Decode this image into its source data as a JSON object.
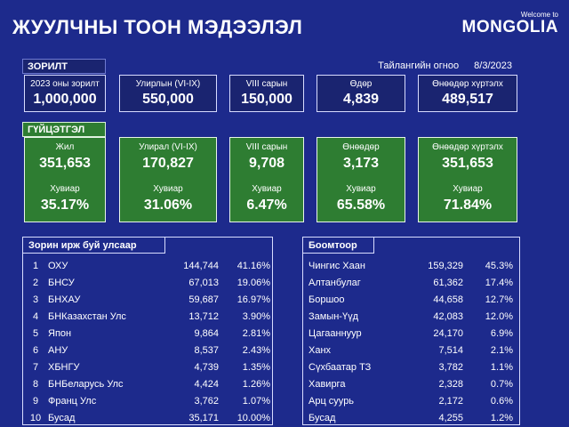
{
  "header": {
    "title": "ЖУУЛЧНЫ ТООН МЭДЭЭЛЭЛ",
    "brand_welcome": "Welcome to",
    "brand_name": "MONGOLIA"
  },
  "goal": {
    "section_label": "ЗОРИЛТ",
    "report_date_label": "Тайлангийн огноо",
    "report_date": "8/3/2023",
    "cards": [
      {
        "label": "2023 оны зорилт",
        "value": "1,000,000"
      },
      {
        "label": "Улирлын (VI-IX)",
        "value": "550,000"
      },
      {
        "label": "VIII сарын",
        "value": "150,000"
      },
      {
        "label": "Өдөр",
        "value": "4,839"
      },
      {
        "label": "Өнөөдөр хүртэлх",
        "value": "489,517"
      }
    ]
  },
  "performance": {
    "section_label": "ГҮЙЦЭТГЭЛ",
    "cards": [
      {
        "label": "Жил",
        "value": "351,653",
        "pct_label": "Хувиар",
        "pct": "35.17%"
      },
      {
        "label": "Улирал (VI-IX)",
        "value": "170,827",
        "pct_label": "Хувиар",
        "pct": "31.06%"
      },
      {
        "label": "VIII сарын",
        "value": "9,708",
        "pct_label": "Хувиар",
        "pct": "6.47%"
      },
      {
        "label": "Өнөөдөр",
        "value": "3,173",
        "pct_label": "Хувиар",
        "pct": "65.58%"
      },
      {
        "label": "Өнөөдөр хүртэлх",
        "value": "351,653",
        "pct_label": "Хувиар",
        "pct": "71.84%"
      }
    ]
  },
  "countries": {
    "title": "Зорин ирж буй улсаар",
    "rows": [
      {
        "rank": "1",
        "name": "ОХУ",
        "count": "144,744",
        "pct": "41.16%"
      },
      {
        "rank": "2",
        "name": "БНСУ",
        "count": "67,013",
        "pct": "19.06%"
      },
      {
        "rank": "3",
        "name": "БНХАУ",
        "count": "59,687",
        "pct": "16.97%"
      },
      {
        "rank": "4",
        "name": "БНКазахстан Улс",
        "count": "13,712",
        "pct": "3.90%"
      },
      {
        "rank": "5",
        "name": "Япон",
        "count": "9,864",
        "pct": "2.81%"
      },
      {
        "rank": "6",
        "name": "АНУ",
        "count": "8,537",
        "pct": "2.43%"
      },
      {
        "rank": "7",
        "name": "ХБНГУ",
        "count": "4,739",
        "pct": "1.35%"
      },
      {
        "rank": "8",
        "name": "БНБеларусь Улс",
        "count": "4,424",
        "pct": "1.26%"
      },
      {
        "rank": "9",
        "name": "Франц Улс",
        "count": "3,762",
        "pct": "1.07%"
      },
      {
        "rank": "10",
        "name": "Бусад",
        "count": "35,171",
        "pct": "10.00%"
      }
    ]
  },
  "border_points": {
    "title": "Боомтоор",
    "rows": [
      {
        "name": "Чингис Хаан",
        "count": "159,329",
        "pct": "45.3%"
      },
      {
        "name": "Алтанбулаг",
        "count": "61,362",
        "pct": "17.4%"
      },
      {
        "name": "Боршоо",
        "count": "44,658",
        "pct": "12.7%"
      },
      {
        "name": "Замын-Үүд",
        "count": "42,083",
        "pct": "12.0%"
      },
      {
        "name": "Цагааннуур",
        "count": "24,170",
        "pct": "6.9%"
      },
      {
        "name": "Ханх",
        "count": "7,514",
        "pct": "2.1%"
      },
      {
        "name": "Сүхбаатар ТЗ",
        "count": "3,782",
        "pct": "1.1%"
      },
      {
        "name": "Хавирга",
        "count": "2,328",
        "pct": "0.7%"
      },
      {
        "name": "Арц суурь",
        "count": "2,172",
        "pct": "0.6%"
      },
      {
        "name": "Бусад",
        "count": "4,255",
        "pct": "1.2%"
      }
    ]
  },
  "colors": {
    "background": "#1d2a8c",
    "goal_card": "#1a2470",
    "performance_card": "#2e7d32"
  }
}
